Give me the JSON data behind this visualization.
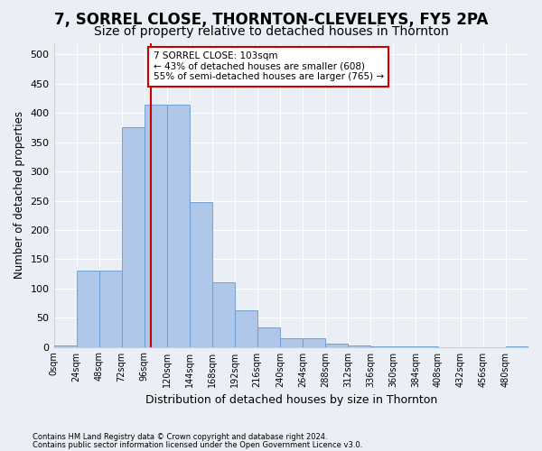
{
  "title": "7, SORREL CLOSE, THORNTON-CLEVELEYS, FY5 2PA",
  "subtitle": "Size of property relative to detached houses in Thornton",
  "xlabel": "Distribution of detached houses by size in Thornton",
  "ylabel": "Number of detached properties",
  "footnote1": "Contains HM Land Registry data © Crown copyright and database right 2024.",
  "footnote2": "Contains public sector information licensed under the Open Government Licence v3.0.",
  "bin_labels": [
    "0sqm",
    "24sqm",
    "48sqm",
    "72sqm",
    "96sqm",
    "120sqm",
    "144sqm",
    "168sqm",
    "192sqm",
    "216sqm",
    "240sqm",
    "264sqm",
    "288sqm",
    "312sqm",
    "336sqm",
    "360sqm",
    "384sqm",
    "408sqm",
    "432sqm",
    "456sqm",
    "480sqm"
  ],
  "bar_values": [
    3,
    130,
    130,
    375,
    415,
    415,
    247,
    110,
    63,
    33,
    15,
    15,
    6,
    2,
    1,
    1,
    1,
    0,
    0,
    0,
    1
  ],
  "bar_color": "#aec6e8",
  "bar_edge_color": "#6699cc",
  "vline_x": 4.3,
  "vline_color": "#cc0000",
  "annotation_text": "7 SORREL CLOSE: 103sqm\n← 43% of detached houses are smaller (608)\n55% of semi-detached houses are larger (765) →",
  "annotation_box_color": "#ffffff",
  "annotation_box_edge_color": "#cc0000",
  "ylim": [
    0,
    520
  ],
  "yticks": [
    0,
    50,
    100,
    150,
    200,
    250,
    300,
    350,
    400,
    450,
    500
  ],
  "bg_color": "#eaeef5",
  "plot_bg_color": "#eaeef5",
  "grid_color": "#ffffff",
  "title_fontsize": 12,
  "subtitle_fontsize": 10
}
